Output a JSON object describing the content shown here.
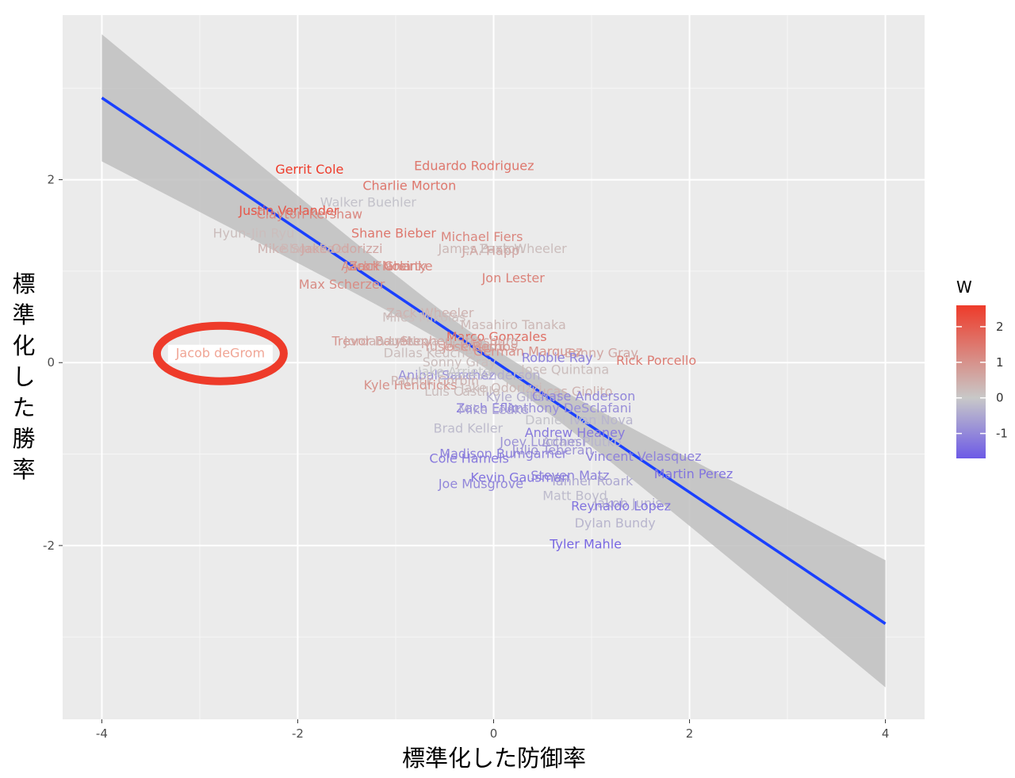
{
  "chart_data": {
    "type": "scatter",
    "xlabel": "標準化した防御率",
    "ylabel": "標準化した勝率",
    "xlim": [
      -4.4,
      4.4
    ],
    "ylim": [
      -3.9,
      3.8
    ],
    "x_ticks": [
      -4,
      -2,
      0,
      2,
      4
    ],
    "x_tick_labels": [
      "-4",
      "-2",
      "0",
      "2",
      "4"
    ],
    "y_ticks": [
      -2,
      0,
      2
    ],
    "y_tick_labels": [
      "-2",
      "0",
      "2"
    ],
    "grid": true,
    "background": "#ebebeb",
    "legend": {
      "title": "W",
      "position": "right",
      "ticks": [
        2,
        1,
        0,
        -1
      ],
      "tick_labels": [
        "2",
        "1",
        "0",
        "-1"
      ],
      "range": [
        -1.7,
        2.6
      ],
      "colors": {
        "low": "#6d5ae6",
        "mid": "#c8c8c8",
        "high": "#ee3b2a"
      }
    },
    "regression": {
      "color": "#1a40ff",
      "band_color": "#c0c0c0",
      "points": [
        {
          "x": -4,
          "y": 2.88,
          "lo": 2.18,
          "hi": 3.57
        },
        {
          "x": 0,
          "y": 0.02,
          "lo": -0.12,
          "hi": 0.16
        },
        {
          "x": 4,
          "y": -2.87,
          "lo": -3.56,
          "hi": -2.17
        }
      ]
    },
    "highlight": {
      "label": "Jacob deGrom",
      "color": "#ee3b2a"
    },
    "points": [
      {
        "label": "Gerrit Cole",
        "x": -1.88,
        "y": 2.11,
        "w": 2.6
      },
      {
        "label": "Eduardo Rodriguez",
        "x": -0.2,
        "y": 2.15,
        "w": 1.5
      },
      {
        "label": "Charlie Morton",
        "x": -0.86,
        "y": 1.93,
        "w": 1.5
      },
      {
        "label": "Walker Buehler",
        "x": -1.28,
        "y": 1.75,
        "w": -0.1
      },
      {
        "label": "Justin Verlander",
        "x": -2.09,
        "y": 1.66,
        "w": 2.1
      },
      {
        "label": "Clayton Kershaw",
        "x": -1.88,
        "y": 1.62,
        "w": 1.2
      },
      {
        "label": "Hyun-Jin Ryu",
        "x": -2.45,
        "y": 1.41,
        "w": 0.2
      },
      {
        "label": "Shane Bieber",
        "x": -1.02,
        "y": 1.41,
        "w": 1.5
      },
      {
        "label": "Michael Fiers",
        "x": -0.12,
        "y": 1.37,
        "w": 1.2
      },
      {
        "label": "Mike Soroka",
        "x": -2.02,
        "y": 1.24,
        "w": 0.4
      },
      {
        "label": "Blake Snell",
        "x": -1.82,
        "y": 1.24,
        "w": 0.3
      },
      {
        "label": "Jake Odorizzi",
        "x": -1.55,
        "y": 1.24,
        "w": 0.6
      },
      {
        "label": "James Paxton",
        "x": -0.13,
        "y": 1.24,
        "w": 0.3
      },
      {
        "label": "Zack Wheeler",
        "x": 0.3,
        "y": 1.24,
        "w": 0.2
      },
      {
        "label": "J.A. Happ",
        "x": -0.03,
        "y": 1.22,
        "w": 0.6
      },
      {
        "label": "Aaron Nola",
        "x": -1.2,
        "y": 1.05,
        "w": 1.1
      },
      {
        "label": "Jack Flaherty",
        "x": -1.1,
        "y": 1.05,
        "w": 0.9
      },
      {
        "label": "Zack Greinke",
        "x": -1.05,
        "y": 1.05,
        "w": 1.2
      },
      {
        "label": "Jon Lester",
        "x": 0.2,
        "y": 0.92,
        "w": 1.3
      },
      {
        "label": "Max Scherzer",
        "x": -1.55,
        "y": 0.85,
        "w": 1.1
      },
      {
        "label": "Zack Wheeler",
        "x": -0.65,
        "y": 0.54,
        "w": 0.4
      },
      {
        "label": "Miles Mikolas",
        "x": -0.71,
        "y": 0.49,
        "w": 0.2
      },
      {
        "label": "Masahiro Tanaka",
        "x": 0.2,
        "y": 0.41,
        "w": 0.3
      },
      {
        "label": "Marco Gonzales",
        "x": 0.03,
        "y": 0.28,
        "w": 1.6
      },
      {
        "label": "Trevor Bauer",
        "x": -1.24,
        "y": 0.23,
        "w": 0.9
      },
      {
        "label": "Jordan Lyles",
        "x": -1.14,
        "y": 0.23,
        "w": 0.5
      },
      {
        "label": "Ivan Nova",
        "x": -0.88,
        "y": 0.23,
        "w": 0.3
      },
      {
        "label": "Stephen Strasburg",
        "x": -0.35,
        "y": 0.23,
        "w": 0.6
      },
      {
        "label": "Yusei Kikuchi",
        "x": -0.3,
        "y": 0.17,
        "w": 0.7
      },
      {
        "label": "Jose Berrios",
        "x": -0.14,
        "y": 0.17,
        "w": 0.9
      },
      {
        "label": "Dallas Keuchel",
        "x": -0.65,
        "y": 0.1,
        "w": 0.2
      },
      {
        "label": "German Marquez",
        "x": 0.35,
        "y": 0.12,
        "w": 1.0
      },
      {
        "label": "Sonny Gray",
        "x": 1.1,
        "y": 0.1,
        "w": 0.6
      },
      {
        "label": "Robbie Ray",
        "x": 0.65,
        "y": 0.05,
        "w": -1.1
      },
      {
        "label": "Rick Porcello",
        "x": 1.66,
        "y": 0.02,
        "w": 1.4
      },
      {
        "label": "Sonny Gray",
        "x": -0.35,
        "y": 0.0,
        "w": 0.2
      },
      {
        "label": "Jose Quintana",
        "x": 0.73,
        "y": -0.08,
        "w": 0.2
      },
      {
        "label": "Anibal Sanchez",
        "x": -0.48,
        "y": -0.14,
        "w": -0.9
      },
      {
        "label": "Chase Anderson",
        "x": -0.05,
        "y": -0.14,
        "w": -0.4
      },
      {
        "label": "Jake Arrieta",
        "x": -0.4,
        "y": -0.1,
        "w": 0.0
      },
      {
        "label": "Kyle Hendricks",
        "x": -0.85,
        "y": -0.25,
        "w": 1.0
      },
      {
        "label": "Patrick Corbin",
        "x": -0.6,
        "y": -0.2,
        "w": 0.4
      },
      {
        "label": "Jake Odorizzi",
        "x": 0.08,
        "y": -0.28,
        "w": 0.3
      },
      {
        "label": "Lucas Giolito",
        "x": 0.8,
        "y": -0.32,
        "w": 0.4
      },
      {
        "label": "Luis Castillo",
        "x": -0.32,
        "y": -0.32,
        "w": 0.2
      },
      {
        "label": "Kyle Gibson",
        "x": 0.3,
        "y": -0.38,
        "w": -0.4
      },
      {
        "label": "Chase Anderson",
        "x": 0.92,
        "y": -0.37,
        "w": -1.0
      },
      {
        "label": "Zach Eflin",
        "x": -0.06,
        "y": -0.5,
        "w": -1.1
      },
      {
        "label": "Anthony DeSclafani",
        "x": 0.77,
        "y": -0.5,
        "w": -0.9
      },
      {
        "label": "Mike Leake",
        "x": 0.0,
        "y": -0.52,
        "w": -0.6
      },
      {
        "label": "Daniel Norris",
        "x": 0.74,
        "y": -0.63,
        "w": -0.1
      },
      {
        "label": "Ivan Nova",
        "x": 1.1,
        "y": -0.63,
        "w": -0.3
      },
      {
        "label": "Brad Keller",
        "x": -0.26,
        "y": -0.72,
        "w": -0.2
      },
      {
        "label": "Andrew Heaney",
        "x": 0.83,
        "y": -0.77,
        "w": -1.2
      },
      {
        "label": "Adam Plutko",
        "x": 0.9,
        "y": -0.87,
        "w": -0.3
      },
      {
        "label": "Joey Lucchesi",
        "x": 0.5,
        "y": -0.87,
        "w": -0.8
      },
      {
        "label": "Julio Teheran",
        "x": 0.6,
        "y": -0.96,
        "w": -0.8
      },
      {
        "label": "Madison Bumgarner",
        "x": 0.1,
        "y": -1.0,
        "w": -1.1
      },
      {
        "label": "Vincent Velasquez",
        "x": 1.53,
        "y": -1.03,
        "w": -1.1
      },
      {
        "label": "Cole Hamels",
        "x": -0.25,
        "y": -1.05,
        "w": -1.2
      },
      {
        "label": "Martin Perez",
        "x": 2.04,
        "y": -1.22,
        "w": -1.3
      },
      {
        "label": "Kevin Gausman",
        "x": 0.27,
        "y": -1.26,
        "w": -1.3
      },
      {
        "label": "Steven Matz",
        "x": 0.78,
        "y": -1.24,
        "w": -1.1
      },
      {
        "label": "Tanner Roark",
        "x": 1.0,
        "y": -1.3,
        "w": -0.5
      },
      {
        "label": "Joe Musgrove",
        "x": -0.13,
        "y": -1.33,
        "w": -1.0
      },
      {
        "label": "Matt Boyd",
        "x": 0.83,
        "y": -1.46,
        "w": -0.2
      },
      {
        "label": "Jakob Junis",
        "x": 1.37,
        "y": -1.54,
        "w": -0.4
      },
      {
        "label": "Reynaldo Lopez",
        "x": 1.3,
        "y": -1.57,
        "w": -1.3
      },
      {
        "label": "Dylan Bundy",
        "x": 1.24,
        "y": -1.76,
        "w": -0.3
      },
      {
        "label": "Tyler Mahle",
        "x": 0.94,
        "y": -1.99,
        "w": -1.5
      },
      {
        "label": "Jacob deGrom",
        "x": -2.79,
        "y": 0.1,
        "w": 0.5,
        "highlight": true
      }
    ]
  }
}
